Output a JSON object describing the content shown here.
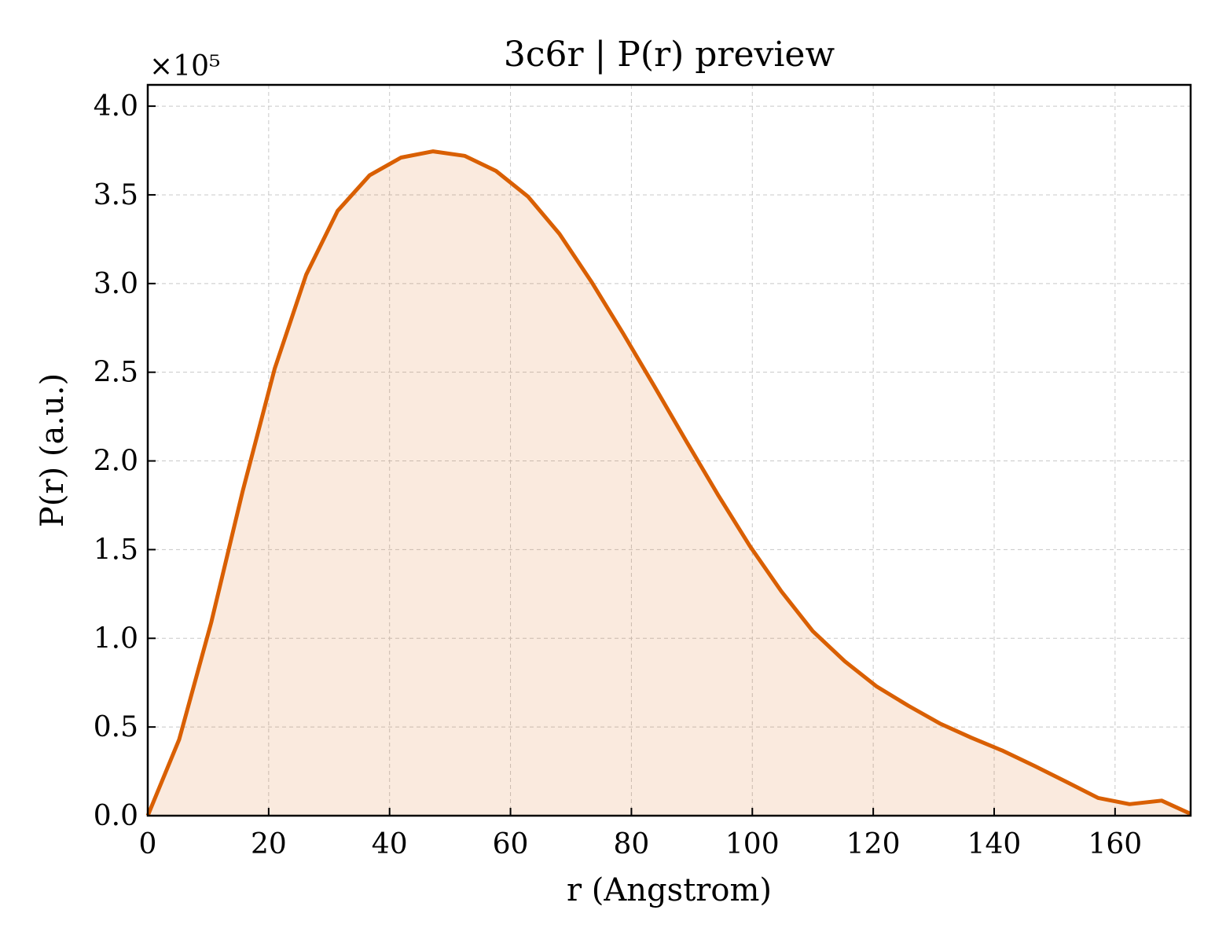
{
  "chart_data": {
    "type": "area",
    "title": "3c6r | P(r) preview",
    "xlabel": "r (Angstrom)",
    "ylabel": "P(r) (a.u.)",
    "y_multiplier": "×10⁵",
    "xlim": [
      0,
      172.5
    ],
    "ylim": [
      0,
      4.12
    ],
    "xticks": [
      "0",
      "20",
      "40",
      "60",
      "80",
      "100",
      "120",
      "140",
      "160"
    ],
    "yticks": [
      "0.0",
      "0.5",
      "1.0",
      "1.5",
      "2.0",
      "2.5",
      "3.0",
      "3.5",
      "4.0"
    ],
    "grid": true,
    "line_color": "#d95f02",
    "fill_color": "#d95f02",
    "series": [
      {
        "x": [
          0,
          5.2,
          10.5,
          15.7,
          21,
          26.2,
          31.4,
          36.7,
          41.9,
          47.2,
          52.4,
          57.6,
          62.9,
          68.1,
          73.4,
          78.6,
          83.8,
          89.1,
          94.3,
          99.6,
          104.8,
          110,
          115.3,
          120.5,
          125.8,
          131,
          136.2,
          141.5,
          146.7,
          152,
          157.2,
          162.4,
          167.7,
          172.5
        ],
        "y": [
          0,
          0.43,
          1.09,
          1.83,
          2.52,
          3.05,
          3.41,
          3.61,
          3.71,
          3.745,
          3.72,
          3.635,
          3.49,
          3.28,
          3.01,
          2.72,
          2.42,
          2.11,
          1.81,
          1.52,
          1.265,
          1.04,
          0.87,
          0.73,
          0.62,
          0.52,
          0.44,
          0.365,
          0.28,
          0.19,
          0.1,
          0.065,
          0.085,
          0.01
        ]
      }
    ]
  }
}
